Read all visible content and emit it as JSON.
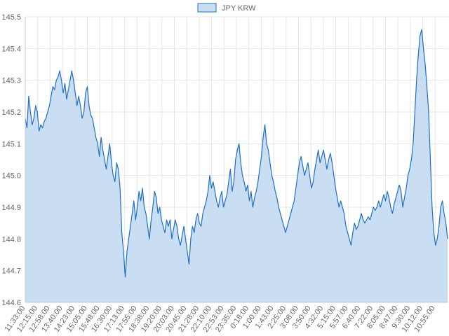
{
  "chart_data": {
    "type": "area",
    "title": "",
    "xlabel": "",
    "ylabel": "",
    "legend": {
      "position": "top",
      "entries": [
        "JPY KRW"
      ]
    },
    "grid": true,
    "ylim": [
      144.6,
      145.5
    ],
    "y_ticks": [
      "144.6",
      "144.7",
      "144.8",
      "144.9",
      "145.0",
      "145.1",
      "145.2",
      "145.3",
      "145.4",
      "145.5"
    ],
    "x_tick_labels": [
      "11:33:00",
      "12:15:00",
      "12:58:00",
      "13:40:00",
      "14:23:00",
      "15:05:00",
      "15:48:00",
      "16:30:00",
      "17:13:00",
      "17:55:00",
      "18:38:00",
      "19:20:00",
      "20:03:00",
      "20:45:00",
      "21:28:00",
      "22:10:00",
      "22:53:00",
      "23:35:00",
      "0:18:00",
      "1:00:00",
      "1:43:00",
      "2:25:00",
      "3:08:00",
      "3:50:00",
      "4:32:00",
      "5:15:00",
      "5:57:00",
      "6:40:00",
      "7:22:00",
      "8:05:00",
      "8:47:00",
      "9:30:00",
      "10:12:00",
      "10:55:00"
    ],
    "colors": {
      "line": "#1f6fc5",
      "fill": "#c9def3",
      "grid": "#e6e6e6",
      "axis": "#cccccc",
      "text": "#666666"
    },
    "series": [
      {
        "name": "JPY KRW",
        "values": [
          145.18,
          145.15,
          145.25,
          145.2,
          145.16,
          145.18,
          145.22,
          145.2,
          145.14,
          145.16,
          145.15,
          145.17,
          145.18,
          145.2,
          145.22,
          145.25,
          145.28,
          145.27,
          145.3,
          145.31,
          145.33,
          145.3,
          145.26,
          145.29,
          145.24,
          145.27,
          145.3,
          145.33,
          145.3,
          145.26,
          145.22,
          145.25,
          145.22,
          145.18,
          145.2,
          145.26,
          145.28,
          145.22,
          145.19,
          145.18,
          145.15,
          145.12,
          145.1,
          145.06,
          145.12,
          145.08,
          145.05,
          145.02,
          145.06,
          145.1,
          145.04,
          145.0,
          144.98,
          145.04,
          145.02,
          144.96,
          144.82,
          144.76,
          144.68,
          144.76,
          144.8,
          144.84,
          144.88,
          144.92,
          144.86,
          144.9,
          144.95,
          144.92,
          144.96,
          144.9,
          144.88,
          144.84,
          144.8,
          144.86,
          144.9,
          144.95,
          144.93,
          144.88,
          144.9,
          144.86,
          144.84,
          144.82,
          144.86,
          144.84,
          144.86,
          144.8,
          144.83,
          144.86,
          144.84,
          144.8,
          144.78,
          144.81,
          144.84,
          144.8,
          144.76,
          144.72,
          144.8,
          144.84,
          144.82,
          144.86,
          144.88,
          144.85,
          144.84,
          144.88,
          144.9,
          144.92,
          144.95,
          145.0,
          144.96,
          144.98,
          144.95,
          144.92,
          144.9,
          144.93,
          144.95,
          144.9,
          144.92,
          144.94,
          144.98,
          145.02,
          144.95,
          144.98,
          145.05,
          145.08,
          145.1,
          145.04,
          145.0,
          144.98,
          144.95,
          144.97,
          144.92,
          144.95,
          144.9,
          144.93,
          144.95,
          144.98,
          145.02,
          145.06,
          145.12,
          145.16,
          145.1,
          145.08,
          145.04,
          145.0,
          144.98,
          144.95,
          144.93,
          144.9,
          144.88,
          144.86,
          144.84,
          144.82,
          144.84,
          144.86,
          144.88,
          144.9,
          144.92,
          144.96,
          145.0,
          145.04,
          145.06,
          145.03,
          145.0,
          145.02,
          145.04,
          145.0,
          144.96,
          144.98,
          145.02,
          145.05,
          145.08,
          145.04,
          145.06,
          145.08,
          145.05,
          145.02,
          145.05,
          145.07,
          145.04,
          145.0,
          144.96,
          144.93,
          144.9,
          144.92,
          144.9,
          144.88,
          144.84,
          144.82,
          144.8,
          144.78,
          144.82,
          144.85,
          144.83,
          144.84,
          144.86,
          144.88,
          144.86,
          144.85,
          144.86,
          144.87,
          144.86,
          144.88,
          144.9,
          144.89,
          144.9,
          144.92,
          144.9,
          144.92,
          144.94,
          144.92,
          144.95,
          144.93,
          144.9,
          144.88,
          144.91,
          144.93,
          144.95,
          144.97,
          144.95,
          144.9,
          144.93,
          144.96,
          145.0,
          145.02,
          145.05,
          145.1,
          145.2,
          145.3,
          145.38,
          145.44,
          145.46,
          145.4,
          145.35,
          145.28,
          145.2,
          145.05,
          144.9,
          144.82,
          144.78,
          144.8,
          144.84,
          144.9,
          144.92,
          144.88,
          144.85,
          144.8
        ]
      }
    ]
  }
}
